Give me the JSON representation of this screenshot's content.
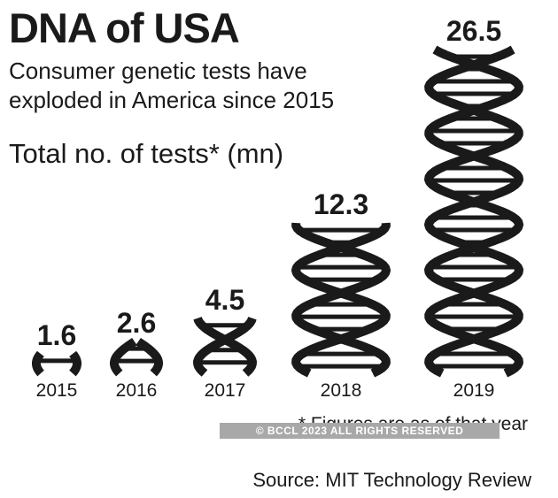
{
  "header": {
    "title": "DNA of USA",
    "subtitle_line1": "Consumer genetic tests have",
    "subtitle_line2": "exploded in America since 2015",
    "metric_label": "Total no. of tests* (mn)"
  },
  "chart_data": {
    "type": "bar",
    "mark": "dna-double-helix",
    "categories": [
      "2015",
      "2016",
      "2017",
      "2018",
      "2019"
    ],
    "values": [
      1.6,
      2.6,
      4.5,
      12.3,
      26.5
    ],
    "data_labels": [
      "1.6",
      "2.6",
      "4.5",
      "12.3",
      "26.5"
    ],
    "title": "DNA of USA",
    "ylabel": "Total no. of tests* (mn)",
    "xlabel": "",
    "ylim": [
      0,
      26.5
    ],
    "grid": false
  },
  "footer": {
    "footnote": "* Figures are as of that year",
    "watermark": "© BCCL 2023 ALL RIGHTS RESERVED",
    "source": "Source: MIT Technology Review"
  },
  "colors": {
    "ink": "#1a1a1a",
    "background": "#ffffff",
    "watermark_bg": "#a8a8a8"
  }
}
